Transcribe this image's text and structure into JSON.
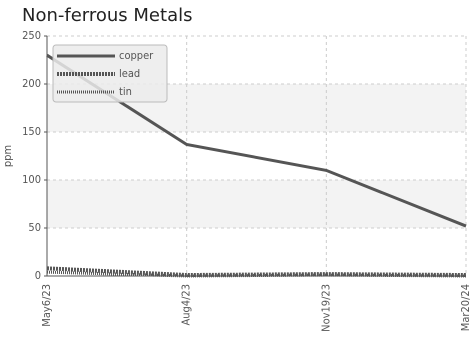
{
  "chart_data": {
    "type": "line",
    "title": "Non-ferrous Metals",
    "y_label": "ppm",
    "categories": [
      "May6/23",
      "Aug4/23",
      "Nov19/23",
      "Mar20/24"
    ],
    "series": [
      {
        "name": "copper",
        "color": "#555555",
        "style": "solid",
        "values": [
          230,
          137,
          110,
          52
        ]
      },
      {
        "name": "lead",
        "color": "#555555",
        "style": "dashed",
        "values": [
          8,
          1,
          2,
          1
        ]
      },
      {
        "name": "tin",
        "color": "#555555",
        "style": "dotted",
        "values": [
          4,
          0,
          1,
          0
        ]
      }
    ],
    "ylim": [
      0,
      250
    ],
    "yticks": [
      0,
      50,
      100,
      150,
      200,
      250
    ],
    "grid": true,
    "legend": "top-left"
  }
}
